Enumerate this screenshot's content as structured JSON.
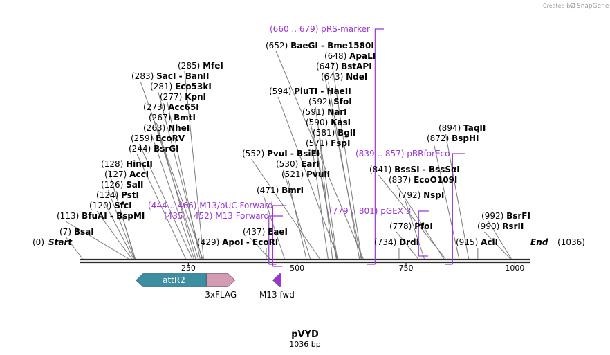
{
  "credit": {
    "prefix": "Created by",
    "brand": "SnapGene"
  },
  "plasmid": {
    "name": "pVYD",
    "size_label": "1036 bp",
    "length": 1036
  },
  "ticks": [
    250,
    500,
    750,
    1000
  ],
  "ends": {
    "start_pos": "(0)",
    "start_label": "Start",
    "end_label": "End",
    "end_pos": "(1036)"
  },
  "sites": [
    {
      "pos": 7,
      "pos_label": "(7)",
      "names": "BsaI"
    },
    {
      "pos": 113,
      "pos_label": "(113)",
      "names": "BfuAI  -  BspMI"
    },
    {
      "pos": 120,
      "pos_label": "(120)",
      "names": "SfcI"
    },
    {
      "pos": 124,
      "pos_label": "(124)",
      "names": "PstI"
    },
    {
      "pos": 126,
      "pos_label": "(126)",
      "names": "SalI"
    },
    {
      "pos": 127,
      "pos_label": "(127)",
      "names": "AccI"
    },
    {
      "pos": 128,
      "pos_label": "(128)",
      "names": "HincII"
    },
    {
      "pos": 244,
      "pos_label": "(244)",
      "names": "BsrGI"
    },
    {
      "pos": 259,
      "pos_label": "(259)",
      "names": "EcoRV"
    },
    {
      "pos": 263,
      "pos_label": "(263)",
      "names": "NheI"
    },
    {
      "pos": 267,
      "pos_label": "(267)",
      "names": "BmtI"
    },
    {
      "pos": 273,
      "pos_label": "(273)",
      "names": "Acc65I"
    },
    {
      "pos": 277,
      "pos_label": "(277)",
      "names": "KpnI"
    },
    {
      "pos": 281,
      "pos_label": "(281)",
      "names": "Eco53kI"
    },
    {
      "pos": 283,
      "pos_label": "(283)",
      "names": "SacI  -  BanII"
    },
    {
      "pos": 285,
      "pos_label": "(285)",
      "names": "MfeI"
    },
    {
      "pos": 429,
      "pos_label": "(429)",
      "names": "ApoI  -  EcoRI"
    },
    {
      "pos": 437,
      "pos_label": "(437)",
      "names": "EaeI"
    },
    {
      "pos": 471,
      "pos_label": "(471)",
      "names": "BmrI"
    },
    {
      "pos": 521,
      "pos_label": "(521)",
      "names": "PvuII"
    },
    {
      "pos": 530,
      "pos_label": "(530)",
      "names": "EarI"
    },
    {
      "pos": 552,
      "pos_label": "(552)",
      "names": "PvuI  -  BsiEI"
    },
    {
      "pos": 571,
      "pos_label": "(571)",
      "names": "FspI"
    },
    {
      "pos": 581,
      "pos_label": "(581)",
      "names": "BglI"
    },
    {
      "pos": 590,
      "pos_label": "(590)",
      "names": "KasI"
    },
    {
      "pos": 591,
      "pos_label": "(591)",
      "names": "NarI"
    },
    {
      "pos": 592,
      "pos_label": "(592)",
      "names": "SfoI"
    },
    {
      "pos": 594,
      "pos_label": "(594)",
      "names": "PluTI  -  HaeII"
    },
    {
      "pos": 643,
      "pos_label": "(643)",
      "names": "NdeI"
    },
    {
      "pos": 647,
      "pos_label": "(647)",
      "names": "BstAPI"
    },
    {
      "pos": 648,
      "pos_label": "(648)",
      "names": "ApaLI"
    },
    {
      "pos": 652,
      "pos_label": "(652)",
      "names": "BaeGI  -  Bme1580I"
    },
    {
      "pos": 734,
      "pos_label": "(734)",
      "names": "DrdI"
    },
    {
      "pos": 778,
      "pos_label": "(778)",
      "names": "PfoI"
    },
    {
      "pos": 792,
      "pos_label": "(792)",
      "names": "NspI"
    },
    {
      "pos": 837,
      "pos_label": "(837)",
      "names": "EcoO109I"
    },
    {
      "pos": 841,
      "pos_label": "(841)",
      "names": "BssSI  -  BssSαI"
    },
    {
      "pos": 872,
      "pos_label": "(872)",
      "names": "BspHI"
    },
    {
      "pos": 894,
      "pos_label": "(894)",
      "names": "TaqII"
    },
    {
      "pos": 915,
      "pos_label": "(915)",
      "names": "AclI"
    },
    {
      "pos": 990,
      "pos_label": "(990)",
      "names": "RsrII"
    },
    {
      "pos": 992,
      "pos_label": "(992)",
      "names": "BsrFI"
    }
  ],
  "primers": [
    {
      "start": 444,
      "end": 466,
      "range": "(444 .. 466)",
      "name": "M13/pUC Forward",
      "strand": "+"
    },
    {
      "start": 435,
      "end": 452,
      "range": "(435 .. 452)",
      "name": "M13 Forward",
      "strand": "+"
    },
    {
      "start": 660,
      "end": 679,
      "range": "(660 .. 679)",
      "name": "pRS-marker",
      "strand": "-"
    },
    {
      "start": 779,
      "end": 801,
      "range": "(779 .. 801)",
      "name": "pGEX 3'",
      "strand": "+"
    },
    {
      "start": 839,
      "end": 857,
      "range": "(839 .. 857)",
      "name": "pBRforEco",
      "strand": "-"
    }
  ],
  "features": [
    {
      "name": "attR2",
      "start": 130,
      "end": 291,
      "direction": "left",
      "color": "#3c8ea0",
      "label_inside": true
    },
    {
      "name": "3xFLAG",
      "start": 292,
      "end": 357,
      "direction": "right",
      "color": "#d39bb4",
      "label_inside": false
    },
    {
      "name": "M13 fwd",
      "start": 444,
      "end": 463,
      "direction": "left",
      "color": "#9a36d6",
      "label_inside": false
    }
  ],
  "colors": {
    "primer": "#9a36d6",
    "backbone": "#2a2a2a",
    "leader": "#7a7a7a"
  }
}
